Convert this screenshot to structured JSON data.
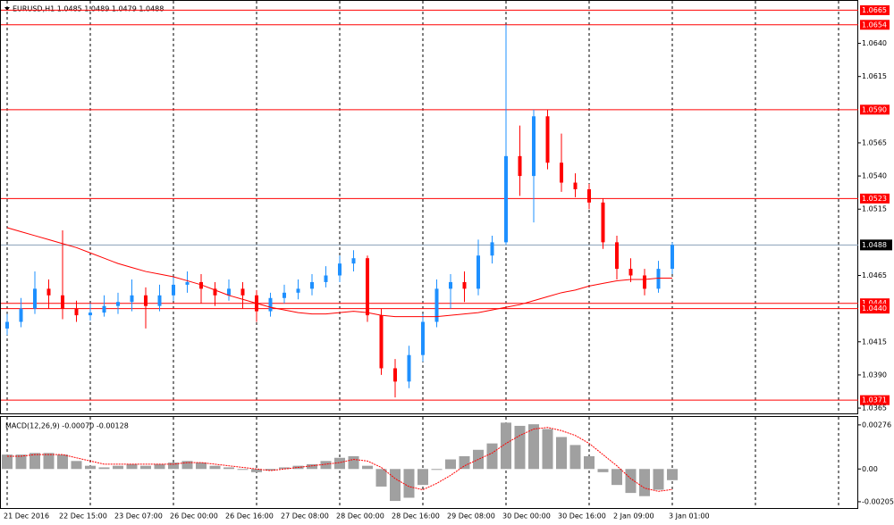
{
  "chart_data": [
    {
      "type": "candlestick",
      "title": "EURUSD,H1  1.0485 1.0489 1.0479 1.0488",
      "categories": [
        "21 Dec 2016",
        null,
        null,
        null,
        "22 Dec 15:00",
        null,
        null,
        null,
        "23 Dec 07:00",
        null,
        null,
        null,
        "26 Dec 00:00",
        null,
        null,
        null,
        "26 Dec 16:00",
        null,
        null,
        null,
        "27 Dec 08:00",
        null,
        null,
        null,
        "28 Dec 00:00",
        null,
        null,
        null,
        "28 Dec 16:00",
        null,
        null,
        null,
        "29 Dec 08:00",
        null,
        null,
        null,
        "30 Dec 00:00",
        null,
        null,
        null,
        "30 Dec 16:00",
        null,
        null,
        null,
        "2 Jan 09:00",
        null,
        null,
        null,
        "3 Jan 01:00"
      ],
      "open": [
        1.0425,
        1.043,
        1.044,
        1.0455,
        1.045,
        1.044,
        1.0435,
        1.0437,
        1.0442,
        1.0445,
        1.045,
        1.0442,
        1.045,
        1.0458,
        1.046,
        1.0455,
        1.045,
        1.0455,
        1.045,
        1.0438,
        1.0448,
        1.0452,
        1.0455,
        1.046,
        1.0465,
        1.0474,
        1.0478,
        1.0435,
        1.0395,
        1.0385,
        1.0405,
        1.043,
        1.0455,
        1.046,
        1.0455,
        1.048,
        1.049,
        1.0555,
        1.054,
        1.0585,
        1.055,
        1.0535,
        1.053,
        1.052,
        1.049,
        1.047,
        1.0465,
        1.0455,
        1.047
      ],
      "high": [
        1.0436,
        1.0448,
        1.0468,
        1.0462,
        1.0499,
        1.0446,
        1.0444,
        1.045,
        1.0452,
        1.0462,
        1.0456,
        1.0458,
        1.0464,
        1.0468,
        1.0466,
        1.046,
        1.0462,
        1.046,
        1.0454,
        1.0452,
        1.0458,
        1.0462,
        1.0466,
        1.0472,
        1.048,
        1.0484,
        1.048,
        1.044,
        1.0402,
        1.0412,
        1.0436,
        1.0462,
        1.0466,
        1.0468,
        1.0492,
        1.0495,
        1.0654,
        1.0578,
        1.059,
        1.059,
        1.0572,
        1.0542,
        1.0534,
        1.0523,
        1.0495,
        1.0478,
        1.047,
        1.0476,
        1.049
      ],
      "low": [
        1.042,
        1.0426,
        1.0436,
        1.044,
        1.0432,
        1.043,
        1.0431,
        1.0434,
        1.0436,
        1.0438,
        1.0425,
        1.0438,
        1.0446,
        1.0452,
        1.0444,
        1.0442,
        1.0446,
        1.044,
        1.043,
        1.0434,
        1.0444,
        1.0447,
        1.045,
        1.0456,
        1.046,
        1.0468,
        1.043,
        1.039,
        1.0373,
        1.038,
        1.04,
        1.0426,
        1.044,
        1.0445,
        1.045,
        1.0474,
        1.0488,
        1.0525,
        1.0505,
        1.0545,
        1.0528,
        1.0524,
        1.0515,
        1.0485,
        1.0462,
        1.046,
        1.045,
        1.0452,
        1.0466
      ],
      "close": [
        1.043,
        1.044,
        1.0455,
        1.045,
        1.044,
        1.0435,
        1.0437,
        1.0442,
        1.0445,
        1.045,
        1.0442,
        1.045,
        1.0458,
        1.046,
        1.0455,
        1.045,
        1.0455,
        1.045,
        1.0438,
        1.0448,
        1.0452,
        1.0455,
        1.046,
        1.0465,
        1.0474,
        1.0478,
        1.0435,
        1.0395,
        1.0385,
        1.0405,
        1.043,
        1.0455,
        1.046,
        1.0455,
        1.048,
        1.049,
        1.0555,
        1.054,
        1.0585,
        1.055,
        1.0535,
        1.053,
        1.052,
        1.049,
        1.047,
        1.0465,
        1.0455,
        1.047,
        1.0488
      ],
      "up_color": "#1e90ff",
      "down_color": "#ff0000",
      "ma": {
        "color": "#ff0000",
        "values": [
          1.0501,
          1.0498,
          1.0495,
          1.0492,
          1.0489,
          1.0486,
          1.0482,
          1.0478,
          1.0474,
          1.0471,
          1.0468,
          1.0466,
          1.0464,
          1.0461,
          1.0458,
          1.0454,
          1.045,
          1.0447,
          1.0444,
          1.0441,
          1.0439,
          1.0437,
          1.0436,
          1.0436,
          1.0437,
          1.0438,
          1.0437,
          1.0435,
          1.0434,
          1.0434,
          1.0434,
          1.0434,
          1.0435,
          1.0436,
          1.0437,
          1.0439,
          1.0441,
          1.0443,
          1.0446,
          1.0449,
          1.0452,
          1.0454,
          1.0457,
          1.0459,
          1.0461,
          1.0462,
          1.0462,
          1.0463,
          1.0463
        ]
      },
      "levels": [
        {
          "value": 1.0665,
          "label": "1.0665"
        },
        {
          "value": 1.0654,
          "label": "1.0654"
        },
        {
          "value": 1.059,
          "label": "1.0590"
        },
        {
          "value": 1.0523,
          "label": "1.0523"
        },
        {
          "value": 1.0444,
          "label": "1.0444"
        },
        {
          "value": 1.044,
          "label": "1.0440"
        },
        {
          "value": 1.0371,
          "label": "1.0371"
        }
      ],
      "level_color": "#ff0000",
      "current_price": {
        "value": 1.0488,
        "label": "1.0488"
      },
      "ylim": [
        1.0361,
        1.067
      ],
      "yticks": [
        {
          "value": 1.064,
          "label": "1.0640"
        },
        {
          "value": 1.0615,
          "label": "1.0615"
        },
        {
          "value": 1.0565,
          "label": "1.0565"
        },
        {
          "value": 1.054,
          "label": "1.0540"
        },
        {
          "value": 1.0515,
          "label": "1.0515"
        },
        {
          "value": 1.0465,
          "label": "1.0465"
        },
        {
          "value": 1.0415,
          "label": "1.0415"
        },
        {
          "value": 1.039,
          "label": "1.0390"
        },
        {
          "value": 1.0365,
          "label": "1.0365"
        }
      ]
    },
    {
      "type": "macd",
      "title": "MACD(12,26,9) -0.00070 -0.00128",
      "series": [
        {
          "name": "MACD",
          "color": "#a0a0a0",
          "values": [
            0.0009,
            0.0009,
            0.001,
            0.001,
            0.0009,
            0.0005,
            0.0002,
            0.0001,
            0.0002,
            0.0003,
            0.0002,
            0.0003,
            0.0004,
            0.0005,
            0.0004,
            0.0002,
            0.0001,
            0.0,
            -0.0002,
            -0.0001,
            0.0001,
            0.0002,
            0.0003,
            0.0005,
            0.0007,
            0.0008,
            0.0002,
            -0.0011,
            -0.002,
            -0.0018,
            -0.001,
            0.0,
            0.0006,
            0.0008,
            0.0012,
            0.0016,
            0.0029,
            0.0027,
            0.0028,
            0.0025,
            0.002,
            0.0015,
            0.0008,
            -0.0002,
            -0.001,
            -0.0015,
            -0.0017,
            -0.0013,
            -0.0007
          ]
        },
        {
          "name": "Signal",
          "color": "#ff0000",
          "values": [
            0.0008,
            0.0008,
            0.0009,
            0.0009,
            0.0009,
            0.0007,
            0.0005,
            0.0003,
            0.0003,
            0.0003,
            0.0003,
            0.0003,
            0.0003,
            0.0004,
            0.0004,
            0.0003,
            0.0002,
            0.0001,
            0.0,
            -0.0001,
            0.0,
            0.0001,
            0.0002,
            0.0003,
            0.0004,
            0.0006,
            0.0005,
            0.0001,
            -0.0006,
            -0.0011,
            -0.0013,
            -0.0009,
            -0.0004,
            0.0002,
            0.0006,
            0.001,
            0.0016,
            0.0021,
            0.0025,
            0.0026,
            0.0024,
            0.0021,
            0.0016,
            0.0009,
            0.0002,
            -0.0006,
            -0.0012,
            -0.0014,
            -0.00128
          ]
        }
      ],
      "ylim": [
        -0.0025,
        0.0032
      ],
      "yticks": [
        {
          "value": 0.00276,
          "label": "0.00276"
        },
        {
          "value": 0,
          "label": "0.00"
        },
        {
          "value": -0.00205,
          "label": "-0.00205"
        }
      ]
    }
  ]
}
